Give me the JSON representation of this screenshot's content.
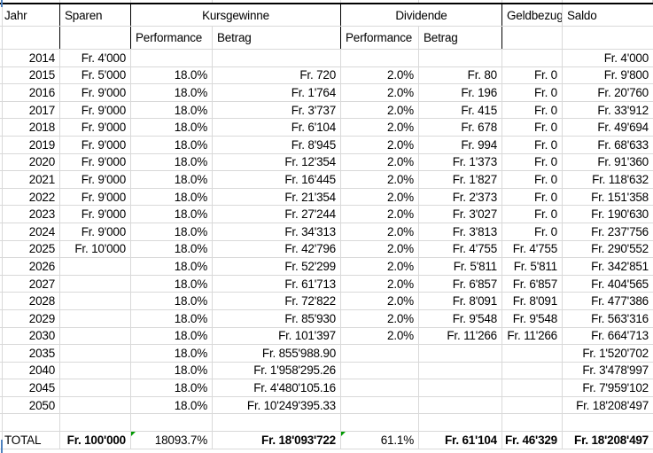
{
  "app": {
    "type": "spreadsheet-grid"
  },
  "colors": {
    "gridline": "#d9d9d9",
    "header_border": "#000000",
    "error_indicator_green": "#009900",
    "page_edge_blue": "#4f81bd",
    "text": "#000000",
    "background": "#ffffff"
  },
  "table": {
    "headers": {
      "jahr": "Jahr",
      "sparen": "Sparen",
      "kursgewinne": "Kursgewinne",
      "dividende": "Dividende",
      "geldbezug": "Geldbezug",
      "saldo": "Saldo",
      "performance": "Performance",
      "betrag": "Betrag"
    },
    "rows": [
      {
        "jahr": "2014",
        "sparen": "Fr. 4'000",
        "kperf": "",
        "kbetrag": "",
        "dperf": "",
        "dbetrag": "",
        "geld": "",
        "saldo": "Fr. 4'000"
      },
      {
        "jahr": "2015",
        "sparen": "Fr. 5'000",
        "kperf": "18.0%",
        "kbetrag": "Fr. 720",
        "dperf": "2.0%",
        "dbetrag": "Fr. 80",
        "geld": "Fr. 0",
        "saldo": "Fr. 9'800"
      },
      {
        "jahr": "2016",
        "sparen": "Fr. 9'000",
        "kperf": "18.0%",
        "kbetrag": "Fr. 1'764",
        "dperf": "2.0%",
        "dbetrag": "Fr. 196",
        "geld": "Fr. 0",
        "saldo": "Fr. 20'760"
      },
      {
        "jahr": "2017",
        "sparen": "Fr. 9'000",
        "kperf": "18.0%",
        "kbetrag": "Fr. 3'737",
        "dperf": "2.0%",
        "dbetrag": "Fr. 415",
        "geld": "Fr. 0",
        "saldo": "Fr. 33'912"
      },
      {
        "jahr": "2018",
        "sparen": "Fr. 9'000",
        "kperf": "18.0%",
        "kbetrag": "Fr. 6'104",
        "dperf": "2.0%",
        "dbetrag": "Fr. 678",
        "geld": "Fr. 0",
        "saldo": "Fr. 49'694"
      },
      {
        "jahr": "2019",
        "sparen": "Fr. 9'000",
        "kperf": "18.0%",
        "kbetrag": "Fr. 8'945",
        "dperf": "2.0%",
        "dbetrag": "Fr. 994",
        "geld": "Fr. 0",
        "saldo": "Fr. 68'633"
      },
      {
        "jahr": "2020",
        "sparen": "Fr. 9'000",
        "kperf": "18.0%",
        "kbetrag": "Fr. 12'354",
        "dperf": "2.0%",
        "dbetrag": "Fr. 1'373",
        "geld": "Fr. 0",
        "saldo": "Fr. 91'360"
      },
      {
        "jahr": "2021",
        "sparen": "Fr. 9'000",
        "kperf": "18.0%",
        "kbetrag": "Fr. 16'445",
        "dperf": "2.0%",
        "dbetrag": "Fr. 1'827",
        "geld": "Fr. 0",
        "saldo": "Fr. 118'632"
      },
      {
        "jahr": "2022",
        "sparen": "Fr. 9'000",
        "kperf": "18.0%",
        "kbetrag": "Fr. 21'354",
        "dperf": "2.0%",
        "dbetrag": "Fr. 2'373",
        "geld": "Fr. 0",
        "saldo": "Fr. 151'358"
      },
      {
        "jahr": "2023",
        "sparen": "Fr. 9'000",
        "kperf": "18.0%",
        "kbetrag": "Fr. 27'244",
        "dperf": "2.0%",
        "dbetrag": "Fr. 3'027",
        "geld": "Fr. 0",
        "saldo": "Fr. 190'630"
      },
      {
        "jahr": "2024",
        "sparen": "Fr. 9'000",
        "kperf": "18.0%",
        "kbetrag": "Fr. 34'313",
        "dperf": "2.0%",
        "dbetrag": "Fr. 3'813",
        "geld": "Fr. 0",
        "saldo": "Fr. 237'756"
      },
      {
        "jahr": "2025",
        "sparen": "Fr. 10'000",
        "kperf": "18.0%",
        "kbetrag": "Fr. 42'796",
        "dperf": "2.0%",
        "dbetrag": "Fr. 4'755",
        "geld": "Fr. 4'755",
        "saldo": "Fr. 290'552"
      },
      {
        "jahr": "2026",
        "sparen": "",
        "kperf": "18.0%",
        "kbetrag": "Fr. 52'299",
        "dperf": "2.0%",
        "dbetrag": "Fr. 5'811",
        "geld": "Fr. 5'811",
        "saldo": "Fr. 342'851"
      },
      {
        "jahr": "2027",
        "sparen": "",
        "kperf": "18.0%",
        "kbetrag": "Fr. 61'713",
        "dperf": "2.0%",
        "dbetrag": "Fr. 6'857",
        "geld": "Fr. 6'857",
        "saldo": "Fr. 404'565"
      },
      {
        "jahr": "2028",
        "sparen": "",
        "kperf": "18.0%",
        "kbetrag": "Fr. 72'822",
        "dperf": "2.0%",
        "dbetrag": "Fr. 8'091",
        "geld": "Fr. 8'091",
        "saldo": "Fr. 477'386"
      },
      {
        "jahr": "2029",
        "sparen": "",
        "kperf": "18.0%",
        "kbetrag": "Fr. 85'930",
        "dperf": "2.0%",
        "dbetrag": "Fr. 9'548",
        "geld": "Fr. 9'548",
        "saldo": "Fr. 563'316"
      },
      {
        "jahr": "2030",
        "sparen": "",
        "kperf": "18.0%",
        "kbetrag": "Fr. 101'397",
        "dperf": "2.0%",
        "dbetrag": "Fr. 11'266",
        "geld": "Fr. 11'266",
        "saldo": "Fr. 664'713"
      },
      {
        "jahr": "2035",
        "sparen": "",
        "kperf": "18.0%",
        "kbetrag": "Fr. 855'988.90",
        "dperf": "",
        "dbetrag": "",
        "geld": "",
        "saldo": "Fr. 1'520'702"
      },
      {
        "jahr": "2040",
        "sparen": "",
        "kperf": "18.0%",
        "kbetrag": "Fr. 1'958'295.26",
        "dperf": "",
        "dbetrag": "",
        "geld": "",
        "saldo": "Fr. 3'478'997"
      },
      {
        "jahr": "2045",
        "sparen": "",
        "kperf": "18.0%",
        "kbetrag": "Fr. 4'480'105.16",
        "dperf": "",
        "dbetrag": "",
        "geld": "",
        "saldo": "Fr. 7'959'102"
      },
      {
        "jahr": "2050",
        "sparen": "",
        "kperf": "18.0%",
        "kbetrag": "Fr. 10'249'395.33",
        "dperf": "",
        "dbetrag": "",
        "geld": "",
        "saldo": "Fr. 18'208'497"
      }
    ],
    "total": {
      "label": "TOTAL",
      "sparen": "Fr. 100'000",
      "kperf": "18093.7%",
      "kbetrag": "Fr. 18'093'722",
      "dperf": "61.1%",
      "dbetrag": "Fr. 61'104",
      "geld": "Fr. 46'329",
      "saldo": "Fr. 18'208'497"
    }
  }
}
